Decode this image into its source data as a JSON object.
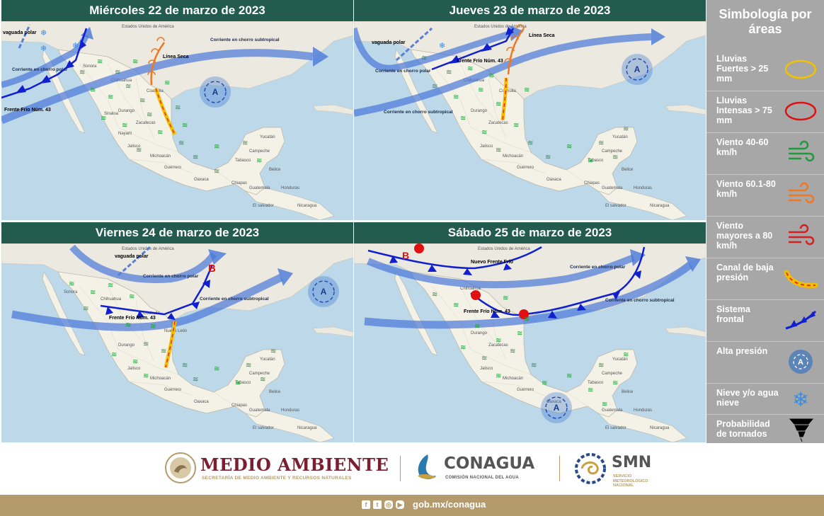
{
  "panels": [
    {
      "title": "Miércoles 22 de marzo de 2023"
    },
    {
      "title": "Jueves 23 de marzo de 2023"
    },
    {
      "title": "Viernes 24 de marzo de 2023"
    },
    {
      "title": "Sábado 25 de marzo de 2023"
    }
  ],
  "map_labels": {
    "usa": "Estados Unidos de América",
    "sonora": "Sonora",
    "chihuahua": "Chihuahua",
    "coahuila": "Coahuila",
    "durango": "Durango",
    "sinaloa": "Sinaloa",
    "zacatecas": "Zacatecas",
    "nayarit": "Nayarit",
    "jalisco": "Jalisco",
    "michoacan": "Michoacán",
    "guerrero": "Guerrero",
    "oaxaca": "Oaxaca",
    "chiapas": "Chiapas",
    "tabasco": "Tabasco",
    "campeche": "Campeche",
    "yucatan": "Yucatán",
    "belice": "Belice",
    "guatemala": "Guatemala",
    "honduras": "Honduras",
    "el_salvador": "El salvador",
    "nicaragua": "Nicaragua",
    "nuevo_leon": "Nuevo León"
  },
  "annotations": {
    "p1": {
      "vaguada": "vaguada polar",
      "chorro_polar": "Corriente en chorro polar",
      "chorro_sub": "Corriente en chorro subtropical",
      "linea_seca": "Línea Seca",
      "frente": "Frente Frío Núm. 43",
      "alta": "A"
    },
    "p2": {
      "vaguada": "vaguada polar",
      "chorro_polar": "Corriente en chorro polar",
      "chorro_sub": "Corriente en chorro subtropical",
      "linea_seca": "Línea Seca",
      "frente": "Frente Frío Núm. 43",
      "alta": "A"
    },
    "p3": {
      "vaguada": "vaguada polar",
      "chorro_polar": "Corriente en chorro polar",
      "chorro_sub": "Corriente en chorro subtropical",
      "frente": "Frente Frío Núm. 43",
      "baja": "B",
      "alta": "A"
    },
    "p4": {
      "nuevo_frente": "Nuevo Frente Frío",
      "chorro_polar": "Corriente en chorro polar",
      "chorro_sub": "Corriente en chorro subtropical",
      "frente": "Frente Frío Núm. 43",
      "baja": "B",
      "alta": "A"
    }
  },
  "legend": {
    "title": "Simbología por áreas",
    "items": [
      {
        "label": "Lluvias Fuertes > 25 mm",
        "icon": "yellow-ellipse-icon",
        "color": "#f2c200"
      },
      {
        "label": "Lluvias Intensas > 75 mm",
        "icon": "red-ellipse-icon",
        "color": "#e01010"
      },
      {
        "label": "Viento 40-60 km/h",
        "icon": "wind-green-icon",
        "color": "#1f9a3a"
      },
      {
        "label": "Viento 60.1-80 km/h",
        "icon": "wind-orange-icon",
        "color": "#f07820"
      },
      {
        "label": "Viento mayores a 80 km/h",
        "icon": "wind-red-icon",
        "color": "#d42020"
      },
      {
        "label": "Canal de baja presión",
        "icon": "trough-icon",
        "color": "#f0c000"
      },
      {
        "label": "Sistema frontal",
        "icon": "front-icon",
        "color": "#1020d0"
      },
      {
        "label": "Alta presión",
        "icon": "high-pressure-icon",
        "color": "#2a6cc0"
      },
      {
        "label": "Nieve y/o agua nieve",
        "icon": "snowflake-icon",
        "color": "#3a8ee0"
      },
      {
        "label": "Probabilidad de tornados",
        "icon": "tornado-icon",
        "color": "#000000"
      }
    ]
  },
  "footer": {
    "medio_ambiente": "MEDIO AMBIENTE",
    "medio_ambiente_sub": "SECRETARÍA DE MEDIO AMBIENTE Y RECURSOS NATURALES",
    "conagua": "CONAGUA",
    "conagua_sub": "COMISIÓN NACIONAL DEL AGUA",
    "smn": "SMN",
    "smn_sub": "SERVICIO METEOROLÓGICO NACIONAL",
    "url": "gob.mx/conagua"
  }
}
